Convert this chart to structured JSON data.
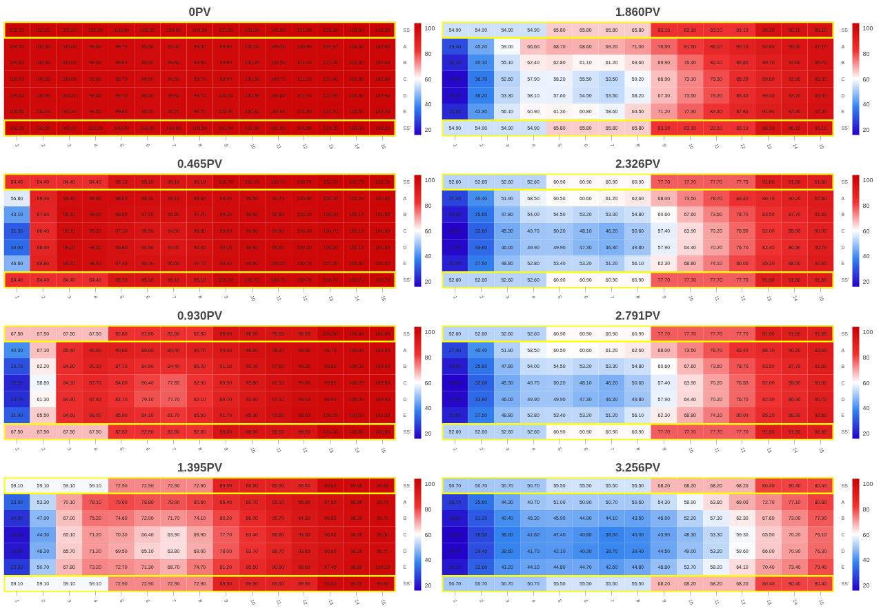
{
  "chart_data": [
    {
      "type": "heatmap",
      "title": "0PV",
      "categories": [
        "1",
        "2",
        "3",
        "4",
        "5",
        "6",
        "7",
        "8",
        "9",
        "10",
        "11",
        "12",
        "13",
        "14",
        "15"
      ],
      "y_categories": [
        "SS",
        "A",
        "B",
        "C",
        "D",
        "E",
        "SS'"
      ],
      "clim": [
        16,
        104
      ],
      "cticks": [
        20,
        40,
        60,
        80,
        100
      ],
      "data_labels": true,
      "cells": [
        [
          102.2,
          102.2,
          102.2,
          102.2,
          100.9,
          100.9,
          100.9,
          100.9,
          101.9,
          101.9,
          101.9,
          101.9,
          103.3,
          103.3,
          103.3
        ],
        [
          100.7,
          100.4,
          100.0,
          99.8,
          99.7,
          99.5,
          99.4,
          99.6,
          99.8,
          100.0,
          100.3,
          100.9,
          101.1,
          101.6,
          102.0
        ],
        [
          100.8,
          100.4,
          100.0,
          99.9,
          99.6,
          99.5,
          99.5,
          99.6,
          99.8,
          100.2,
          100.5,
          101.1,
          101.3,
          101.6,
          102.0
        ],
        [
          100.7,
          100.3,
          100.0,
          99.8,
          99.7,
          99.5,
          99.5,
          99.7,
          99.9,
          100.3,
          100.7,
          101.1,
          101.4,
          101.6,
          102.0
        ],
        [
          100.8,
          100.3,
          100.2,
          99.8,
          99.7,
          99.5,
          99.6,
          99.7,
          100.0,
          100.3,
          100.8,
          101.1,
          101.5,
          101.6,
          102.0
        ],
        [
          100.8,
          100.1,
          100.3,
          99.9,
          99.8,
          99.5,
          99.7,
          99.7,
          100.2,
          100.4,
          101.0,
          101.4,
          101.7,
          101.9,
          102.2
        ],
        [
          102.2,
          102.2,
          102.2,
          102.2,
          100.9,
          100.9,
          100.9,
          100.9,
          101.9,
          101.9,
          101.9,
          101.9,
          103.3,
          103.3,
          103.3
        ]
      ],
      "cell_labels": [
        [
          "102.20",
          "102.20",
          "102.20",
          "102.20",
          "100.90",
          "100.90",
          "100.90",
          "100.90",
          "101.90",
          "101.90",
          "101.90",
          "101.90",
          "103.30",
          "103.30",
          "103.30"
        ],
        [
          "100.70",
          "100.40",
          "100.00",
          "99.80",
          "99.70",
          "99.50",
          "99.40",
          "99.60",
          "99.80",
          "100.00",
          "100.30",
          "100.90",
          "101.10",
          "101.60",
          "102.00"
        ],
        [
          "100.80",
          "100.40",
          "100.00",
          "99.90",
          "99.60",
          "99.50",
          "99.50",
          "99.60",
          "99.80",
          "100.20",
          "100.50",
          "101.10",
          "101.30",
          "101.60",
          "102.00"
        ],
        [
          "100.70",
          "100.30",
          "100.00",
          "99.80",
          "99.70",
          "99.50",
          "99.50",
          "99.70",
          "99.90",
          "100.30",
          "100.70",
          "101.10",
          "101.40",
          "101.60",
          "102.00"
        ],
        [
          "100.80",
          "100.30",
          "100.20",
          "99.80",
          "99.70",
          "99.50",
          "99.60",
          "99.70",
          "100.00",
          "100.30",
          "100.80",
          "101.10",
          "101.50",
          "101.60",
          "102.00"
        ],
        [
          "100.80",
          "100.10",
          "100.30",
          "99.90",
          "99.80",
          "99.50",
          "99.70",
          "99.70",
          "100.20",
          "100.40",
          "101.00",
          "101.40",
          "101.70",
          "101.90",
          "102.20"
        ],
        [
          "102.20",
          "102.20",
          "102.20",
          "102.20",
          "100.90",
          "100.90",
          "100.90",
          "100.90",
          "101.90",
          "101.90",
          "101.90",
          "101.90",
          "103.30",
          "103.30",
          "103.30"
        ]
      ]
    },
    {
      "type": "heatmap",
      "title": "1.860PV",
      "categories": [
        "1",
        "2",
        "3",
        "4",
        "5",
        "6",
        "7",
        "8",
        "9",
        "10",
        "11",
        "12",
        "13",
        "14",
        "15"
      ],
      "y_categories": [
        "SS",
        "A",
        "B",
        "C",
        "D",
        "E",
        "SS'"
      ],
      "clim": [
        16,
        104
      ],
      "cticks": [
        20,
        40,
        60,
        80,
        100
      ],
      "data_labels": true,
      "cells": [
        [
          54.9,
          54.9,
          54.9,
          54.9,
          65.8,
          65.8,
          65.8,
          65.8,
          83.1,
          83.1,
          83.1,
          83.1,
          96.1,
          96.1,
          96.1
        ],
        [
          29.4,
          45.2,
          59.0,
          66.6,
          68.7,
          68.6,
          69.2,
          71.0,
          76.5,
          81.5,
          86.1,
          90.1,
          92.8,
          95.4,
          97.1
        ],
        [
          22.1,
          40.1,
          55.1,
          62.4,
          62.8,
          61.1,
          61.2,
          63.6,
          69.9,
          76.4,
          82.1,
          86.8,
          90.7,
          94.0,
          96.7
        ],
        [
          17.6,
          36.7,
          52.6,
          57.9,
          58.2,
          55.5,
          53.5,
          59.2,
          66.9,
          73.1,
          79.3,
          85.2,
          89.6,
          92.9,
          96.3
        ],
        [
          18.2,
          38.2,
          53.3,
          58.1,
          57.6,
          54.5,
          53.5,
          58.2,
          67.3,
          73.5,
          79.2,
          85.4,
          90.0,
          93.1,
          96.3
        ],
        [
          23.0,
          42.3,
          56.1,
          60.9,
          61.3,
          60.8,
          58.6,
          64.5,
          71.2,
          77.3,
          82.4,
          87.8,
          91.9,
          94.2,
          97.3
        ],
        [
          54.9,
          54.9,
          54.9,
          54.9,
          65.8,
          65.8,
          65.8,
          65.8,
          83.1,
          83.1,
          83.1,
          83.1,
          96.1,
          96.1,
          96.1
        ]
      ],
      "cell_labels": [
        [
          "54.90",
          "54.90",
          "54.90",
          "54.90",
          "65.80",
          "65.80",
          "65.80",
          "65.80",
          "83.10",
          "83.10",
          "83.10",
          "83.10",
          "96.10",
          "96.10",
          "96.10"
        ],
        [
          "29.40",
          "45.20",
          "59.00",
          "66.60",
          "68.70",
          "68.60",
          "69.20",
          "71.00",
          "76.50",
          "81.50",
          "86.10",
          "90.10",
          "92.80",
          "95.40",
          "97.10"
        ],
        [
          "22.10",
          "40.10",
          "55.10",
          "62.40",
          "62.80",
          "61.10",
          "61.20",
          "63.60",
          "69.90",
          "76.40",
          "82.10",
          "86.80",
          "90.70",
          "94.00",
          "96.70"
        ],
        [
          "17.60",
          "36.70",
          "52.60",
          "57.90",
          "58.20",
          "55.50",
          "53.50",
          "59.20",
          "66.90",
          "73.10",
          "79.30",
          "85.20",
          "89.60",
          "92.90",
          "96.30"
        ],
        [
          "18.20",
          "38.20",
          "53.30",
          "58.10",
          "57.60",
          "54.50",
          "53.50",
          "58.20",
          "67.30",
          "73.50",
          "79.20",
          "85.40",
          "90.00",
          "93.10",
          "96.30"
        ],
        [
          "23.00",
          "42.30",
          "56.10",
          "60.90",
          "61.30",
          "60.80",
          "58.60",
          "64.50",
          "71.20",
          "77.30",
          "82.40",
          "87.80",
          "91.90",
          "94.20",
          "97.30"
        ],
        [
          "54.90",
          "54.90",
          "54.90",
          "54.90",
          "65.80",
          "65.80",
          "65.80",
          "65.80",
          "83.10",
          "83.10",
          "83.10",
          "83.10",
          "96.10",
          "96.10",
          "96.10"
        ]
      ]
    },
    {
      "type": "heatmap",
      "title": "0.465PV",
      "categories": [
        "1",
        "2",
        "3",
        "4",
        "5",
        "6",
        "7",
        "8",
        "9",
        "10",
        "11",
        "12",
        "13",
        "14",
        "15"
      ],
      "y_categories": [
        "SS",
        "A",
        "B",
        "C",
        "D",
        "E",
        "SS'"
      ],
      "clim": [
        16,
        104
      ],
      "cticks": [
        20,
        40,
        60,
        80,
        100
      ],
      "data_labels": true,
      "cells": [
        [
          84.4,
          84.4,
          84.4,
          84.4,
          95.1,
          95.1,
          95.1,
          95.1,
          100.7,
          100.7,
          100.7,
          100.7,
          102.7,
          102.7,
          102.7
        ],
        [
          56.8,
          89.3,
          98.4,
          98.8,
          98.6,
          98.3,
          98.1,
          98.6,
          99.2,
          99.5,
          99.7,
          100.3,
          100.6,
          101.2,
          101.6
        ],
        [
          43.1,
          87.9,
          99.1,
          99.0,
          98.0,
          97.1,
          96.9,
          97.7,
          99.2,
          99.6,
          99.8,
          100.2,
          100.6,
          101.1,
          101.5
        ],
        [
          31.3,
          86.4,
          99.1,
          98.2,
          97.1,
          95.5,
          94.5,
          96.8,
          99.0,
          99.6,
          99.8,
          100.2,
          100.7,
          101.1,
          101.5
        ],
        [
          34.0,
          88.5,
          99.2,
          98.3,
          96.8,
          94.9,
          94.4,
          96.4,
          99.1,
          99.6,
          99.9,
          100.3,
          100.8,
          101.1,
          101.6
        ],
        [
          46.6,
          89.8,
          98.7,
          98.4,
          97.4,
          96.7,
          96.0,
          97.7,
          99.4,
          99.8,
          100.3,
          100.7,
          101.2,
          101.5,
          101.9
        ],
        [
          84.4,
          84.4,
          84.4,
          84.4,
          95.1,
          95.1,
          95.1,
          95.1,
          100.7,
          100.7,
          100.7,
          100.7,
          102.7,
          102.7,
          102.7
        ]
      ],
      "cell_labels": [
        [
          "84.40",
          "84.40",
          "84.40",
          "84.40",
          "95.10",
          "95.10",
          "95.10",
          "95.10",
          "100.70",
          "100.70",
          "100.70",
          "100.70",
          "102.70",
          "102.70",
          "102.70"
        ],
        [
          "56.80",
          "89.30",
          "98.40",
          "98.80",
          "98.60",
          "98.30",
          "98.10",
          "98.60",
          "99.20",
          "99.50",
          "99.70",
          "100.30",
          "100.60",
          "101.20",
          "101.60"
        ],
        [
          "43.10",
          "87.90",
          "99.10",
          "99.00",
          "98.00",
          "97.10",
          "96.90",
          "97.70",
          "99.20",
          "99.60",
          "99.80",
          "100.20",
          "100.60",
          "101.10",
          "101.50"
        ],
        [
          "31.30",
          "86.40",
          "99.10",
          "98.20",
          "97.10",
          "95.50",
          "94.50",
          "96.80",
          "99.00",
          "99.60",
          "99.80",
          "100.20",
          "100.70",
          "101.10",
          "101.50"
        ],
        [
          "34.00",
          "88.50",
          "99.20",
          "98.30",
          "96.80",
          "94.90",
          "94.40",
          "96.40",
          "99.10",
          "99.60",
          "99.90",
          "100.30",
          "100.80",
          "101.10",
          "101.60"
        ],
        [
          "46.60",
          "89.80",
          "98.70",
          "98.40",
          "97.40",
          "96.70",
          "96.00",
          "97.70",
          "99.40",
          "99.80",
          "100.30",
          "100.70",
          "101.20",
          "101.50",
          "101.90"
        ],
        [
          "84.40",
          "84.40",
          "84.40",
          "84.40",
          "95.10",
          "95.10",
          "95.10",
          "95.10",
          "100.70",
          "100.70",
          "100.70",
          "100.70",
          "102.70",
          "102.70",
          "102.70"
        ]
      ]
    },
    {
      "type": "heatmap",
      "title": "2.326PV",
      "categories": [
        "1",
        "2",
        "3",
        "4",
        "5",
        "6",
        "7",
        "8",
        "9",
        "10",
        "11",
        "12",
        "13",
        "14",
        "15"
      ],
      "y_categories": [
        "SS",
        "A",
        "B",
        "C",
        "D",
        "E",
        "SS'"
      ],
      "clim": [
        16,
        104
      ],
      "cticks": [
        20,
        40,
        60,
        80,
        100
      ],
      "data_labels": true,
      "cells": [
        [
          52.6,
          52.6,
          52.6,
          52.6,
          60.9,
          60.9,
          60.9,
          60.9,
          77.7,
          77.7,
          77.7,
          77.7,
          91.6,
          91.6,
          91.6
        ],
        [
          27.4,
          40.4,
          51.9,
          58.5,
          60.5,
          60.6,
          61.2,
          62.6,
          68.0,
          73.5,
          78.7,
          83.4,
          86.7,
          90.2,
          92.6
        ],
        [
          20.8,
          35.6,
          47.8,
          54.0,
          54.5,
          53.2,
          53.3,
          54.8,
          60.6,
          67.6,
          73.6,
          78.7,
          83.5,
          87.7,
          91.6
        ],
        [
          16.6,
          32.6,
          45.3,
          49.7,
          50.2,
          48.1,
          46.2,
          50.6,
          57.4,
          63.9,
          70.2,
          76.5,
          82.0,
          85.9,
          90.0
        ],
        [
          17.4,
          33.8,
          46.0,
          49.9,
          49.9,
          47.3,
          46.3,
          49.8,
          57.9,
          64.4,
          70.2,
          76.7,
          82.3,
          86.3,
          90.7
        ],
        [
          21.5,
          37.5,
          48.8,
          52.8,
          53.4,
          53.2,
          51.2,
          56.1,
          62.3,
          68.8,
          74.1,
          80.0,
          85.2,
          88.0,
          92.6
        ],
        [
          52.6,
          52.6,
          52.6,
          52.6,
          60.9,
          60.9,
          60.9,
          60.9,
          77.7,
          77.7,
          77.7,
          77.7,
          91.6,
          91.6,
          91.6
        ]
      ],
      "cell_labels": [
        [
          "52.60",
          "52.60",
          "52.60",
          "52.60",
          "60.90",
          "60.90",
          "60.90",
          "60.90",
          "77.70",
          "77.70",
          "77.70",
          "77.70",
          "91.60",
          "91.60",
          "91.60"
        ],
        [
          "27.40",
          "40.40",
          "51.90",
          "58.50",
          "60.50",
          "60.60",
          "61.20",
          "62.60",
          "68.00",
          "73.50",
          "78.70",
          "83.40",
          "86.70",
          "90.20",
          "92.60"
        ],
        [
          "20.80",
          "35.60",
          "47.80",
          "54.00",
          "54.50",
          "53.20",
          "53.30",
          "54.80",
          "60.60",
          "67.60",
          "73.60",
          "78.70",
          "83.50",
          "87.70",
          "91.60"
        ],
        [
          "16.60",
          "32.60",
          "45.30",
          "49.70",
          "50.20",
          "48.10",
          "46.20",
          "50.60",
          "57.40",
          "63.90",
          "70.20",
          "76.50",
          "82.00",
          "85.90",
          "90.00"
        ],
        [
          "17.40",
          "33.80",
          "46.00",
          "49.90",
          "49.90",
          "47.30",
          "46.30",
          "49.80",
          "57.90",
          "64.40",
          "70.20",
          "76.70",
          "82.30",
          "86.30",
          "90.70"
        ],
        [
          "21.50",
          "37.50",
          "48.80",
          "52.80",
          "53.40",
          "53.20",
          "51.20",
          "56.10",
          "62.30",
          "68.80",
          "74.10",
          "80.00",
          "85.20",
          "88.00",
          "92.60"
        ],
        [
          "52.60",
          "52.60",
          "52.60",
          "52.60",
          "60.90",
          "60.90",
          "60.90",
          "60.90",
          "77.70",
          "77.70",
          "77.70",
          "77.70",
          "91.60",
          "91.60",
          "91.60"
        ]
      ]
    },
    {
      "type": "heatmap",
      "title": "0.930PV",
      "categories": [
        "1",
        "2",
        "3",
        "4",
        "5",
        "6",
        "7",
        "8",
        "9",
        "10",
        "11",
        "12",
        "13",
        "14",
        "15"
      ],
      "y_categories": [
        "SS",
        "A",
        "B",
        "C",
        "D",
        "E",
        "SS'"
      ],
      "clim": [
        16,
        104
      ],
      "cticks": [
        20,
        40,
        60,
        80,
        100
      ],
      "data_labels": true,
      "cells": [
        [
          67.5,
          67.5,
          67.5,
          67.5,
          82.8,
          82.8,
          82.8,
          82.8,
          96.0,
          96.0,
          96.0,
          96.0,
          101.6,
          101.6,
          101.6
        ],
        [
          40.3,
          67.1,
          85.4,
          90.9,
          90.6,
          89.6,
          89.4,
          90.7,
          94.0,
          96.5,
          98.2,
          99.3,
          99.7,
          100.4,
          100.9
        ],
        [
          29.7,
          62.2,
          84.8,
          90.1,
          87.7,
          84.9,
          84.4,
          86.2,
          91.1,
          95.1,
          97.6,
          99.2,
          99.8,
          100.3,
          100.9
        ],
        [
          22.3,
          58.8,
          84.2,
          87.7,
          84.6,
          80.4,
          77.8,
          82.9,
          89.5,
          93.8,
          97.1,
          99.0,
          99.8,
          100.2,
          100.8
        ],
        [
          23.7,
          61.3,
          84.4,
          87.4,
          83.7,
          79.1,
          77.7,
          82.1,
          89.7,
          93.9,
          97.1,
          99.1,
          99.9,
          100.3,
          100.9
        ],
        [
          31.9,
          65.5,
          84.6,
          88.0,
          85.9,
          84.1,
          81.7,
          86.5,
          91.7,
          95.3,
          97.8,
          99.6,
          100.2,
          100.6,
          101.3
        ],
        [
          67.5,
          67.5,
          67.5,
          67.5,
          82.8,
          82.8,
          82.8,
          82.8,
          96.0,
          96.0,
          96.0,
          96.0,
          101.6,
          101.6,
          101.6
        ]
      ],
      "cell_labels": [
        [
          "67.50",
          "67.50",
          "67.50",
          "67.50",
          "82.80",
          "82.80",
          "82.80",
          "82.80",
          "96.00",
          "96.00",
          "96.00",
          "96.00",
          "101.60",
          "101.60",
          "101.60"
        ],
        [
          "40.30",
          "67.10",
          "85.40",
          "90.90",
          "90.60",
          "89.60",
          "89.40",
          "90.70",
          "94.00",
          "96.50",
          "98.20",
          "99.30",
          "99.70",
          "100.40",
          "100.90"
        ],
        [
          "29.70",
          "62.20",
          "84.80",
          "90.10",
          "87.70",
          "84.90",
          "84.40",
          "86.20",
          "91.10",
          "95.10",
          "97.60",
          "99.20",
          "99.80",
          "100.30",
          "100.90"
        ],
        [
          "22.30",
          "58.80",
          "84.20",
          "87.70",
          "84.60",
          "80.40",
          "77.80",
          "82.90",
          "89.50",
          "93.80",
          "97.10",
          "99.00",
          "99.80",
          "100.20",
          "100.80"
        ],
        [
          "23.70",
          "61.30",
          "84.40",
          "87.40",
          "83.70",
          "79.10",
          "77.70",
          "82.10",
          "89.70",
          "93.90",
          "97.10",
          "99.10",
          "99.90",
          "100.30",
          "100.90"
        ],
        [
          "31.90",
          "65.50",
          "84.60",
          "88.00",
          "85.90",
          "84.10",
          "81.70",
          "86.50",
          "91.70",
          "95.30",
          "97.80",
          "99.60",
          "100.20",
          "100.60",
          "101.30"
        ],
        [
          "67.50",
          "67.50",
          "67.50",
          "67.50",
          "82.80",
          "82.80",
          "82.80",
          "82.80",
          "96.00",
          "96.00",
          "96.00",
          "96.00",
          "101.60",
          "101.60",
          "101.60"
        ]
      ]
    },
    {
      "type": "heatmap",
      "title": "2.791PV",
      "categories": [
        "1",
        "2",
        "3",
        "4",
        "5",
        "6",
        "7",
        "8",
        "9",
        "10",
        "11",
        "12",
        "13",
        "14",
        "15"
      ],
      "y_categories": [
        "SS",
        "A",
        "B",
        "C",
        "D",
        "E",
        "SS'"
      ],
      "clim": [
        16,
        104
      ],
      "cticks": [
        20,
        40,
        60,
        80,
        100
      ],
      "data_labels": true,
      "cells": [
        [
          52.6,
          52.6,
          52.6,
          52.6,
          60.9,
          60.9,
          60.9,
          60.9,
          77.7,
          77.7,
          77.7,
          77.7,
          91.6,
          91.6,
          91.6
        ],
        [
          27.4,
          40.4,
          51.9,
          58.5,
          60.5,
          60.6,
          61.2,
          62.6,
          68.0,
          73.5,
          78.7,
          83.4,
          86.7,
          90.2,
          92.6
        ],
        [
          20.8,
          35.6,
          47.8,
          54.0,
          54.5,
          53.2,
          53.3,
          54.8,
          60.6,
          67.6,
          73.6,
          78.7,
          83.5,
          87.7,
          91.6
        ],
        [
          16.6,
          32.6,
          45.3,
          49.7,
          50.2,
          48.1,
          46.2,
          50.6,
          57.4,
          63.9,
          70.2,
          76.5,
          82.0,
          85.9,
          90.0
        ],
        [
          17.4,
          33.8,
          46.0,
          49.9,
          49.9,
          47.3,
          46.3,
          49.8,
          57.9,
          64.4,
          70.2,
          76.7,
          82.3,
          86.3,
          90.7
        ],
        [
          21.5,
          37.5,
          48.8,
          52.8,
          53.4,
          53.2,
          51.2,
          56.1,
          62.3,
          68.8,
          74.1,
          80.0,
          85.2,
          88.0,
          92.6
        ],
        [
          52.6,
          52.6,
          52.6,
          52.6,
          60.9,
          60.9,
          60.9,
          60.9,
          77.7,
          77.7,
          77.7,
          77.7,
          91.6,
          91.6,
          91.6
        ]
      ],
      "cell_labels": [
        [
          "52.60",
          "52.60",
          "52.60",
          "52.60",
          "60.90",
          "60.90",
          "60.90",
          "60.90",
          "77.70",
          "77.70",
          "77.70",
          "77.70",
          "91.60",
          "91.60",
          "91.60"
        ],
        [
          "27.40",
          "40.40",
          "51.90",
          "58.50",
          "60.50",
          "60.60",
          "61.20",
          "62.60",
          "68.00",
          "73.50",
          "78.70",
          "83.40",
          "86.70",
          "90.20",
          "92.60"
        ],
        [
          "20.80",
          "35.60",
          "47.80",
          "54.00",
          "54.50",
          "53.20",
          "53.30",
          "54.80",
          "60.60",
          "67.60",
          "73.60",
          "78.70",
          "83.50",
          "87.70",
          "91.60"
        ],
        [
          "16.60",
          "32.60",
          "45.30",
          "49.70",
          "50.20",
          "48.10",
          "46.20",
          "50.60",
          "57.40",
          "63.90",
          "70.20",
          "76.50",
          "82.00",
          "85.90",
          "90.00"
        ],
        [
          "17.40",
          "33.80",
          "46.00",
          "49.90",
          "49.90",
          "47.30",
          "46.30",
          "49.80",
          "57.90",
          "64.40",
          "70.20",
          "76.70",
          "82.30",
          "86.30",
          "90.70"
        ],
        [
          "21.50",
          "37.50",
          "48.80",
          "52.80",
          "53.40",
          "53.20",
          "51.20",
          "56.10",
          "62.30",
          "68.80",
          "74.10",
          "80.00",
          "85.20",
          "88.00",
          "92.60"
        ],
        [
          "52.60",
          "52.60",
          "52.60",
          "52.60",
          "60.90",
          "60.90",
          "60.90",
          "60.90",
          "77.70",
          "77.70",
          "77.70",
          "77.70",
          "91.60",
          "91.60",
          "91.60"
        ]
      ]
    },
    {
      "type": "heatmap",
      "title": "1.395PV",
      "categories": [
        "1",
        "2",
        "3",
        "4",
        "5",
        "6",
        "7",
        "8",
        "9",
        "10",
        "11",
        "12",
        "13",
        "14",
        "15"
      ],
      "y_categories": [
        "SS",
        "A",
        "B",
        "C",
        "D",
        "E",
        "SS'"
      ],
      "clim": [
        16,
        104
      ],
      "cticks": [
        20,
        40,
        60,
        80,
        100
      ],
      "data_labels": true,
      "cells": [
        [
          59.1,
          59.1,
          59.1,
          59.1,
          72.9,
          72.9,
          72.9,
          72.9,
          89.5,
          89.5,
          89.5,
          89.5,
          99.6,
          99.6,
          99.6
        ],
        [
          33.0,
          53.3,
          70.1,
          78.1,
          79.6,
          78.8,
          78.9,
          80.6,
          85.4,
          89.7,
          93.1,
          95.9,
          97.5,
          98.9,
          99.7
        ],
        [
          24.5,
          47.9,
          67.0,
          75.2,
          74.6,
          72.0,
          71.7,
          74.1,
          80.2,
          86.0,
          90.7,
          94.3,
          96.8,
          98.3,
          99.7
        ],
        [
          18.9,
          44.3,
          65.1,
          71.2,
          70.3,
          66.4,
          63.9,
          69.9,
          77.7,
          83.4,
          88.8,
          93.5,
          96.5,
          98.2,
          99.6
        ],
        [
          19.8,
          46.2,
          65.7,
          71.2,
          69.5,
          65.1,
          63.8,
          69.0,
          78.0,
          83.7,
          88.7,
          93.6,
          96.6,
          98.2,
          98.7
        ],
        [
          25.9,
          50.7,
          67.8,
          73.2,
          72.7,
          71.3,
          68.7,
          74.7,
          81.2,
          86.5,
          90.9,
          95.0,
          97.4,
          98.8,
          100.1
        ],
        [
          59.1,
          59.1,
          59.1,
          59.1,
          72.9,
          72.9,
          72.9,
          72.9,
          89.5,
          89.5,
          89.5,
          89.5,
          99.6,
          99.6,
          99.6
        ]
      ],
      "cell_labels": [
        [
          "59.10",
          "59.10",
          "59.10",
          "59.10",
          "72.90",
          "72.90",
          "72.90",
          "72.90",
          "89.50",
          "89.50",
          "89.50",
          "89.50",
          "99.60",
          "99.60",
          "99.60"
        ],
        [
          "33.00",
          "53.30",
          "70.10",
          "78.10",
          "79.60",
          "78.80",
          "78.90",
          "80.60",
          "85.40",
          "89.70",
          "93.10",
          "95.90",
          "97.50",
          "98.90",
          "99.70"
        ],
        [
          "24.50",
          "47.90",
          "67.00",
          "75.20",
          "74.60",
          "72.00",
          "71.70",
          "74.10",
          "80.20",
          "86.00",
          "90.70",
          "94.30",
          "96.80",
          "98.30",
          "99.70"
        ],
        [
          "18.90",
          "44.30",
          "65.10",
          "71.20",
          "70.30",
          "66.40",
          "63.90",
          "69.90",
          "77.70",
          "83.40",
          "88.80",
          "93.50",
          "96.50",
          "98.20",
          "99.60"
        ],
        [
          "19.80",
          "46.20",
          "65.70",
          "71.20",
          "69.50",
          "65.10",
          "63.80",
          "69.00",
          "78.00",
          "83.70",
          "88.70",
          "93.60",
          "96.60",
          "98.20",
          "98.70"
        ],
        [
          "25.90",
          "50.70",
          "67.80",
          "73.20",
          "72.70",
          "71.30",
          "68.70",
          "74.70",
          "81.20",
          "86.50",
          "90.90",
          "95.00",
          "97.40",
          "98.80",
          "100.10"
        ],
        [
          "59.10",
          "59.10",
          "59.10",
          "59.10",
          "72.90",
          "72.90",
          "72.90",
          "72.90",
          "89.50",
          "89.50",
          "89.50",
          "89.50",
          "99.60",
          "99.60",
          "99.60"
        ]
      ]
    },
    {
      "type": "heatmap",
      "title": "3.256PV",
      "categories": [
        "1",
        "2",
        "3",
        "4",
        "5",
        "6",
        "7",
        "8",
        "9",
        "10",
        "11",
        "12",
        "13",
        "14",
        "15"
      ],
      "y_categories": [
        "SS",
        "A",
        "B",
        "C",
        "D",
        "E",
        "SS'"
      ],
      "clim": [
        16,
        104
      ],
      "cticks": [
        20,
        40,
        60,
        80,
        100
      ],
      "data_labels": true,
      "cells": [
        [
          50.7,
          50.7,
          50.7,
          50.7,
          55.5,
          55.5,
          55.5,
          55.5,
          68.2,
          68.2,
          68.2,
          68.2,
          80.4,
          80.4,
          80.4
        ],
        [
          25.7,
          35.6,
          44.3,
          49.7,
          51.0,
          50.9,
          50.7,
          50.6,
          54.3,
          58.9,
          63.8,
          69.0,
          72.7,
          77.1,
          80.8
        ],
        [
          19.8,
          31.2,
          40.4,
          45.3,
          45.9,
          44.9,
          44.1,
          43.5,
          46.9,
          52.2,
          57.3,
          62.3,
          67.6,
          73.0,
          77.9
        ],
        [
          16.3,
          28.5,
          38.0,
          41.6,
          42.4,
          40.8,
          38.6,
          40.0,
          43.9,
          48.3,
          53.3,
          59.3,
          65.5,
          70.2,
          76.1
        ],
        [
          16.7,
          29.4,
          38.5,
          41.7,
          42.1,
          40.3,
          38.7,
          39.4,
          44.5,
          49.0,
          53.2,
          59.6,
          66.0,
          70.9,
          76.3
        ],
        [
          20.2,
          32.6,
          41.2,
          44.1,
          44.8,
          44.7,
          42.6,
          44.8,
          48.8,
          53.7,
          58.2,
          64.1,
          70.4,
          73.4,
          79.4
        ],
        [
          50.7,
          50.7,
          50.7,
          50.7,
          55.5,
          55.5,
          55.5,
          55.5,
          68.2,
          68.2,
          68.2,
          68.2,
          80.4,
          80.4,
          80.4
        ]
      ],
      "cell_labels": [
        [
          "50.70",
          "50.70",
          "50.70",
          "50.70",
          "55.50",
          "55.50",
          "55.50",
          "55.50",
          "68.20",
          "68.20",
          "68.20",
          "68.20",
          "80.40",
          "80.40",
          "80.40"
        ],
        [
          "25.70",
          "35.60",
          "44.30",
          "49.70",
          "51.00",
          "50.90",
          "50.70",
          "50.60",
          "54.30",
          "58.90",
          "63.80",
          "69.00",
          "72.70",
          "77.10",
          "80.80"
        ],
        [
          "19.80",
          "31.20",
          "40.40",
          "45.30",
          "45.90",
          "44.90",
          "44.10",
          "43.50",
          "46.90",
          "52.20",
          "57.30",
          "62.30",
          "67.60",
          "73.00",
          "77.90"
        ],
        [
          "16.30",
          "28.50",
          "38.00",
          "41.60",
          "42.40",
          "40.80",
          "38.60",
          "40.00",
          "43.90",
          "48.30",
          "53.30",
          "59.30",
          "65.50",
          "70.20",
          "76.10"
        ],
        [
          "16.70",
          "29.40",
          "38.50",
          "41.70",
          "42.10",
          "40.30",
          "38.70",
          "39.40",
          "44.50",
          "49.00",
          "53.20",
          "59.60",
          "66.00",
          "70.90",
          "76.30"
        ],
        [
          "20.20",
          "32.60",
          "41.20",
          "44.10",
          "44.80",
          "44.70",
          "42.60",
          "44.80",
          "48.80",
          "53.70",
          "58.20",
          "64.10",
          "70.40",
          "73.40",
          "79.40"
        ],
        [
          "50.70",
          "50.70",
          "50.70",
          "50.70",
          "55.50",
          "55.50",
          "55.50",
          "55.50",
          "68.20",
          "68.20",
          "68.20",
          "68.20",
          "80.40",
          "80.40",
          "80.40"
        ]
      ]
    }
  ]
}
